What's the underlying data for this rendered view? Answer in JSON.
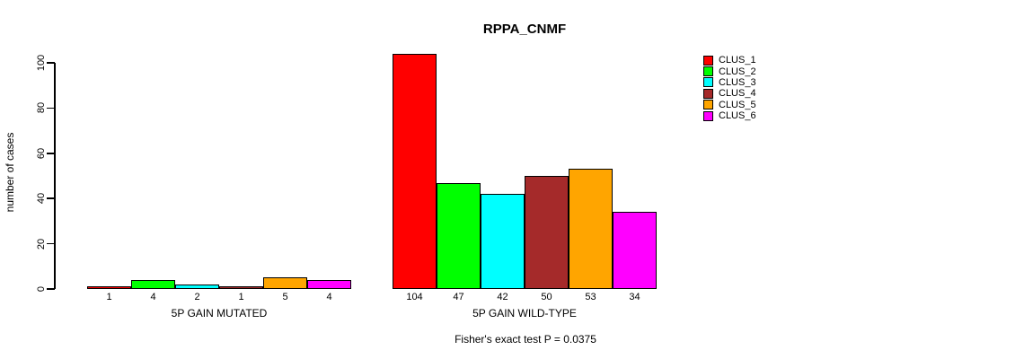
{
  "chart_data": {
    "type": "bar",
    "title": "RPPA_CNMF",
    "xlabel": "",
    "ylabel": "number of cases",
    "ylim": [
      0,
      100
    ],
    "yticks": [
      0,
      20,
      40,
      60,
      80,
      100
    ],
    "grid": false,
    "legend_position": "right",
    "bar_value_labels": true,
    "categories": [
      "5P GAIN MUTATED",
      "5P GAIN WILD-TYPE"
    ],
    "series": [
      {
        "name": "CLUS_1",
        "color": "#FF0000",
        "values": [
          1,
          104
        ]
      },
      {
        "name": "CLUS_2",
        "color": "#00FF00",
        "values": [
          4,
          47
        ]
      },
      {
        "name": "CLUS_3",
        "color": "#00FFFF",
        "values": [
          2,
          42
        ]
      },
      {
        "name": "CLUS_4",
        "color": "#A52A2A",
        "values": [
          1,
          50
        ]
      },
      {
        "name": "CLUS_5",
        "color": "#FFA500",
        "values": [
          5,
          53
        ]
      },
      {
        "name": "CLUS_6",
        "color": "#FF00FF",
        "values": [
          4,
          34
        ]
      }
    ],
    "annotation": "Fisher's exact test P = 0.0375"
  }
}
